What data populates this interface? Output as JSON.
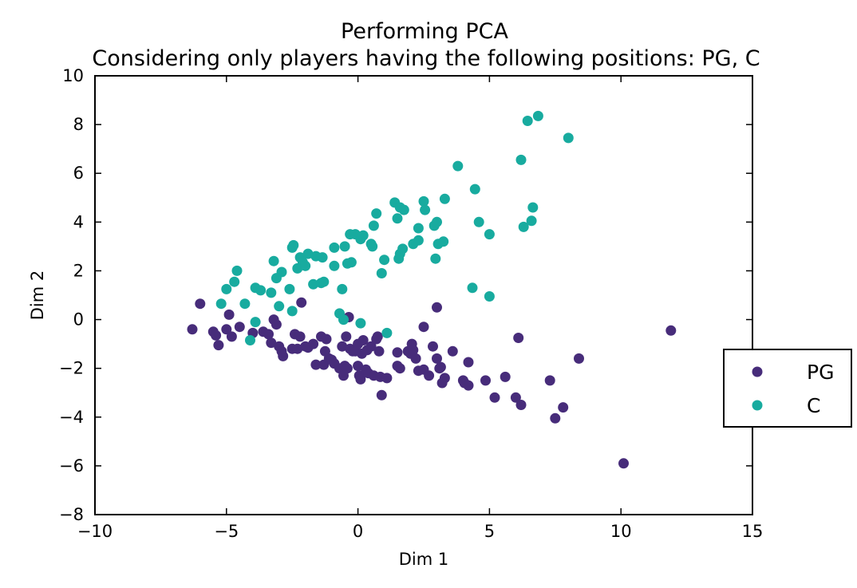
{
  "chart_data": {
    "type": "scatter",
    "title": "Performing PCA",
    "subtitle": "Considering only players having the following positions:  PG,  C",
    "xlabel": "Dim 1",
    "ylabel": "Dim 2",
    "xlim": [
      -10,
      15
    ],
    "ylim": [
      -8,
      10
    ],
    "xticks": [
      -10,
      -5,
      0,
      5,
      10,
      15
    ],
    "yticks": [
      -8,
      -6,
      -4,
      -2,
      0,
      2,
      4,
      6,
      8,
      10
    ],
    "xtick_labels": [
      "−10",
      "−5",
      "0",
      "5",
      "10",
      "15"
    ],
    "ytick_labels": [
      "−8",
      "−6",
      "−4",
      "−2",
      "0",
      "2",
      "4",
      "6",
      "8",
      "10"
    ],
    "grid": false,
    "legend_position": "right",
    "series": [
      {
        "name": "PG",
        "color": "#472c7a",
        "points": [
          [
            -6.3,
            -0.4
          ],
          [
            -6.0,
            0.65
          ],
          [
            -5.5,
            -0.5
          ],
          [
            -5.4,
            -0.65
          ],
          [
            -5.3,
            -1.05
          ],
          [
            -5.0,
            -0.4
          ],
          [
            -4.9,
            0.2
          ],
          [
            -4.8,
            -0.7
          ],
          [
            -4.5,
            -0.3
          ],
          [
            -4.0,
            -0.55
          ],
          [
            -3.6,
            -0.5
          ],
          [
            -3.4,
            -0.6
          ],
          [
            -3.3,
            -0.95
          ],
          [
            -3.2,
            0.0
          ],
          [
            -3.1,
            -0.2
          ],
          [
            -3.0,
            -1.1
          ],
          [
            -2.9,
            -1.3
          ],
          [
            -2.85,
            -1.5
          ],
          [
            -2.5,
            -1.2
          ],
          [
            -2.4,
            -0.6
          ],
          [
            -2.3,
            -1.2
          ],
          [
            -2.2,
            -0.7
          ],
          [
            -2.15,
            0.7
          ],
          [
            -2.0,
            -1.1
          ],
          [
            -1.9,
            -1.15
          ],
          [
            -1.7,
            -1.0
          ],
          [
            -1.6,
            -1.85
          ],
          [
            -1.4,
            -0.7
          ],
          [
            -1.3,
            -1.85
          ],
          [
            -1.25,
            -1.3
          ],
          [
            -1.2,
            -0.8
          ],
          [
            -1.1,
            -1.6
          ],
          [
            -1.0,
            -1.65
          ],
          [
            -0.9,
            -1.8
          ],
          [
            -0.7,
            -2.0
          ],
          [
            -0.6,
            -1.1
          ],
          [
            -0.55,
            -2.3
          ],
          [
            -0.5,
            -1.9
          ],
          [
            -0.45,
            -0.7
          ],
          [
            -0.4,
            -2.0
          ],
          [
            -0.35,
            0.1
          ],
          [
            -0.3,
            -1.2
          ],
          [
            -0.2,
            -1.3
          ],
          [
            -0.1,
            -1.3
          ],
          [
            0.0,
            -1.0
          ],
          [
            0.0,
            -1.9
          ],
          [
            0.05,
            -2.3
          ],
          [
            0.1,
            -2.45
          ],
          [
            0.15,
            -1.4
          ],
          [
            0.2,
            -0.85
          ],
          [
            0.3,
            -2.05
          ],
          [
            0.35,
            -1.25
          ],
          [
            0.4,
            -2.2
          ],
          [
            0.5,
            -1.1
          ],
          [
            0.6,
            -2.3
          ],
          [
            0.7,
            -0.8
          ],
          [
            0.75,
            -0.7
          ],
          [
            0.8,
            -1.3
          ],
          [
            0.85,
            -2.35
          ],
          [
            0.9,
            -3.1
          ],
          [
            1.1,
            -2.4
          ],
          [
            1.5,
            -1.35
          ],
          [
            1.5,
            -1.9
          ],
          [
            1.6,
            -2.0
          ],
          [
            1.9,
            -1.3
          ],
          [
            2.0,
            -1.4
          ],
          [
            2.05,
            -1.0
          ],
          [
            2.1,
            -1.25
          ],
          [
            2.2,
            -1.6
          ],
          [
            2.3,
            -2.1
          ],
          [
            2.5,
            -0.3
          ],
          [
            2.5,
            -2.05
          ],
          [
            2.7,
            -2.3
          ],
          [
            2.85,
            -1.1
          ],
          [
            3.0,
            0.5
          ],
          [
            3.0,
            -1.6
          ],
          [
            3.1,
            -2.0
          ],
          [
            3.15,
            -1.95
          ],
          [
            3.2,
            -2.6
          ],
          [
            3.3,
            -2.4
          ],
          [
            3.6,
            -1.3
          ],
          [
            4.0,
            -2.5
          ],
          [
            4.05,
            -2.6
          ],
          [
            4.2,
            -1.75
          ],
          [
            4.2,
            -2.7
          ],
          [
            4.85,
            -2.5
          ],
          [
            5.2,
            -3.2
          ],
          [
            5.6,
            -2.35
          ],
          [
            6.0,
            -3.2
          ],
          [
            6.1,
            -0.75
          ],
          [
            6.2,
            -3.5
          ],
          [
            7.3,
            -2.5
          ],
          [
            7.5,
            -4.05
          ],
          [
            7.8,
            -3.6
          ],
          [
            8.4,
            -1.6
          ],
          [
            10.1,
            -5.9
          ],
          [
            11.9,
            -0.45
          ]
        ]
      },
      {
        "name": "C",
        "color": "#18ab9f",
        "points": [
          [
            -5.2,
            0.65
          ],
          [
            -5.0,
            1.25
          ],
          [
            -4.7,
            1.55
          ],
          [
            -4.6,
            2.0
          ],
          [
            -4.3,
            0.65
          ],
          [
            -4.1,
            -0.85
          ],
          [
            -3.9,
            -0.1
          ],
          [
            -3.9,
            1.3
          ],
          [
            -3.7,
            1.2
          ],
          [
            -3.3,
            1.1
          ],
          [
            -3.2,
            2.4
          ],
          [
            -3.1,
            1.7
          ],
          [
            -3.0,
            0.55
          ],
          [
            -2.9,
            1.95
          ],
          [
            -2.6,
            1.25
          ],
          [
            -2.5,
            0.35
          ],
          [
            -2.5,
            2.95
          ],
          [
            -2.45,
            3.05
          ],
          [
            -2.3,
            2.1
          ],
          [
            -2.2,
            2.55
          ],
          [
            -2.1,
            2.35
          ],
          [
            -2.0,
            2.2
          ],
          [
            -1.9,
            2.7
          ],
          [
            -1.7,
            1.45
          ],
          [
            -1.6,
            2.6
          ],
          [
            -1.4,
            1.5
          ],
          [
            -1.35,
            2.55
          ],
          [
            -1.3,
            1.55
          ],
          [
            -0.9,
            2.2
          ],
          [
            -0.9,
            2.95
          ],
          [
            -0.7,
            0.25
          ],
          [
            -0.6,
            1.25
          ],
          [
            -0.55,
            0.0
          ],
          [
            -0.5,
            3.0
          ],
          [
            -0.4,
            2.3
          ],
          [
            -0.3,
            3.5
          ],
          [
            -0.25,
            2.35
          ],
          [
            -0.1,
            3.5
          ],
          [
            0.1,
            3.3
          ],
          [
            0.1,
            -0.15
          ],
          [
            0.2,
            3.45
          ],
          [
            0.5,
            3.1
          ],
          [
            0.55,
            3.0
          ],
          [
            0.6,
            3.85
          ],
          [
            0.7,
            4.35
          ],
          [
            0.9,
            1.9
          ],
          [
            1.0,
            2.45
          ],
          [
            1.1,
            -0.55
          ],
          [
            1.4,
            4.8
          ],
          [
            1.5,
            4.15
          ],
          [
            1.55,
            2.5
          ],
          [
            1.6,
            2.7
          ],
          [
            1.6,
            4.6
          ],
          [
            1.7,
            2.9
          ],
          [
            1.75,
            4.5
          ],
          [
            2.1,
            3.1
          ],
          [
            2.3,
            3.25
          ],
          [
            2.3,
            3.75
          ],
          [
            2.5,
            4.85
          ],
          [
            2.55,
            4.5
          ],
          [
            2.9,
            3.85
          ],
          [
            2.95,
            2.5
          ],
          [
            3.0,
            4.0
          ],
          [
            3.05,
            3.1
          ],
          [
            3.25,
            3.2
          ],
          [
            3.3,
            4.95
          ],
          [
            3.8,
            6.3
          ],
          [
            4.35,
            1.3
          ],
          [
            4.45,
            5.35
          ],
          [
            4.6,
            4.0
          ],
          [
            5.0,
            3.5
          ],
          [
            5.0,
            0.95
          ],
          [
            6.2,
            6.55
          ],
          [
            6.3,
            3.8
          ],
          [
            6.45,
            8.15
          ],
          [
            6.6,
            4.05
          ],
          [
            6.65,
            4.6
          ],
          [
            6.85,
            8.35
          ],
          [
            8.0,
            7.45
          ]
        ]
      }
    ]
  }
}
